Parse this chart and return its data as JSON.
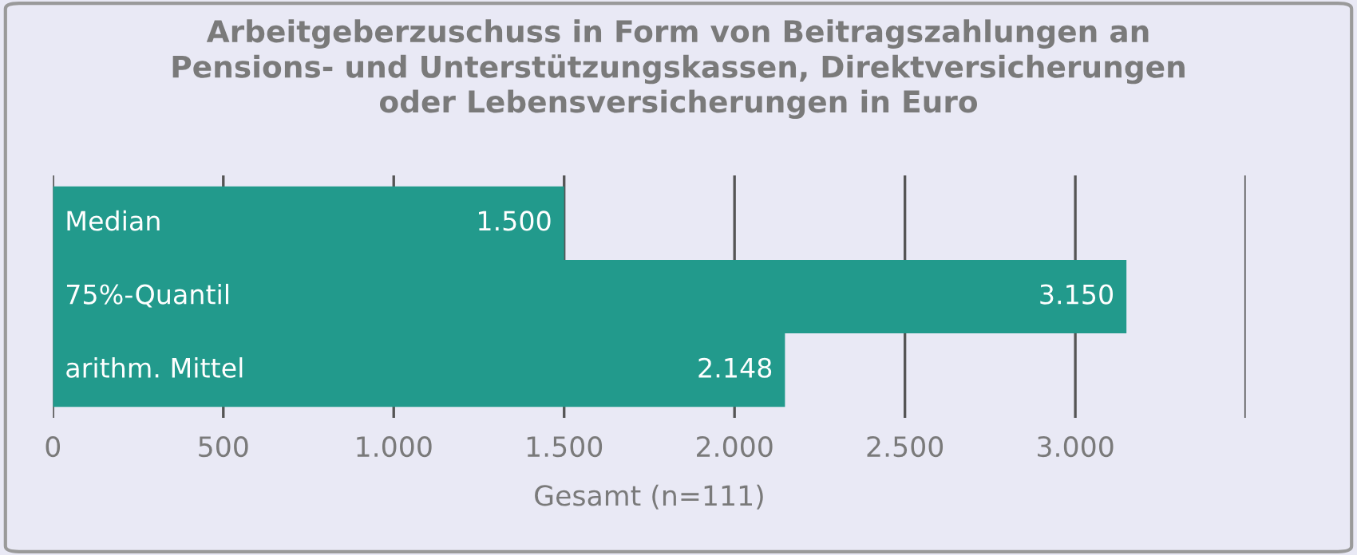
{
  "chart_data": {
    "type": "bar",
    "orientation": "horizontal",
    "title": "Arbeitgeberzuschuss in Form von Beitragszahlungen an\nPensions- und Unterstützungskassen, Direktversicherungen\noder Lebensversicherungen in Euro",
    "xlabel": "Gesamt (n=111)",
    "categories": [
      "Median",
      "75%-Quantil",
      "arithm. Mittel"
    ],
    "values": [
      1500,
      3150,
      2148
    ],
    "value_labels": [
      "1.500",
      "3.150",
      "2.148"
    ],
    "color": "#229a8c",
    "xlim": [
      0,
      3500
    ],
    "xticks": [
      0,
      {
        "value": 500,
        "label": "500"
      },
      {
        "value": 1000,
        "label": "1.000"
      },
      {
        "value": 1500,
        "label": "1.500"
      },
      {
        "value": 2000,
        "label": "2.000"
      },
      {
        "value": 2500,
        "label": "2.500"
      },
      {
        "value": 3000,
        "label": "3.000"
      },
      {
        "value": 3500,
        "label": null
      }
    ],
    "grid": "x"
  }
}
